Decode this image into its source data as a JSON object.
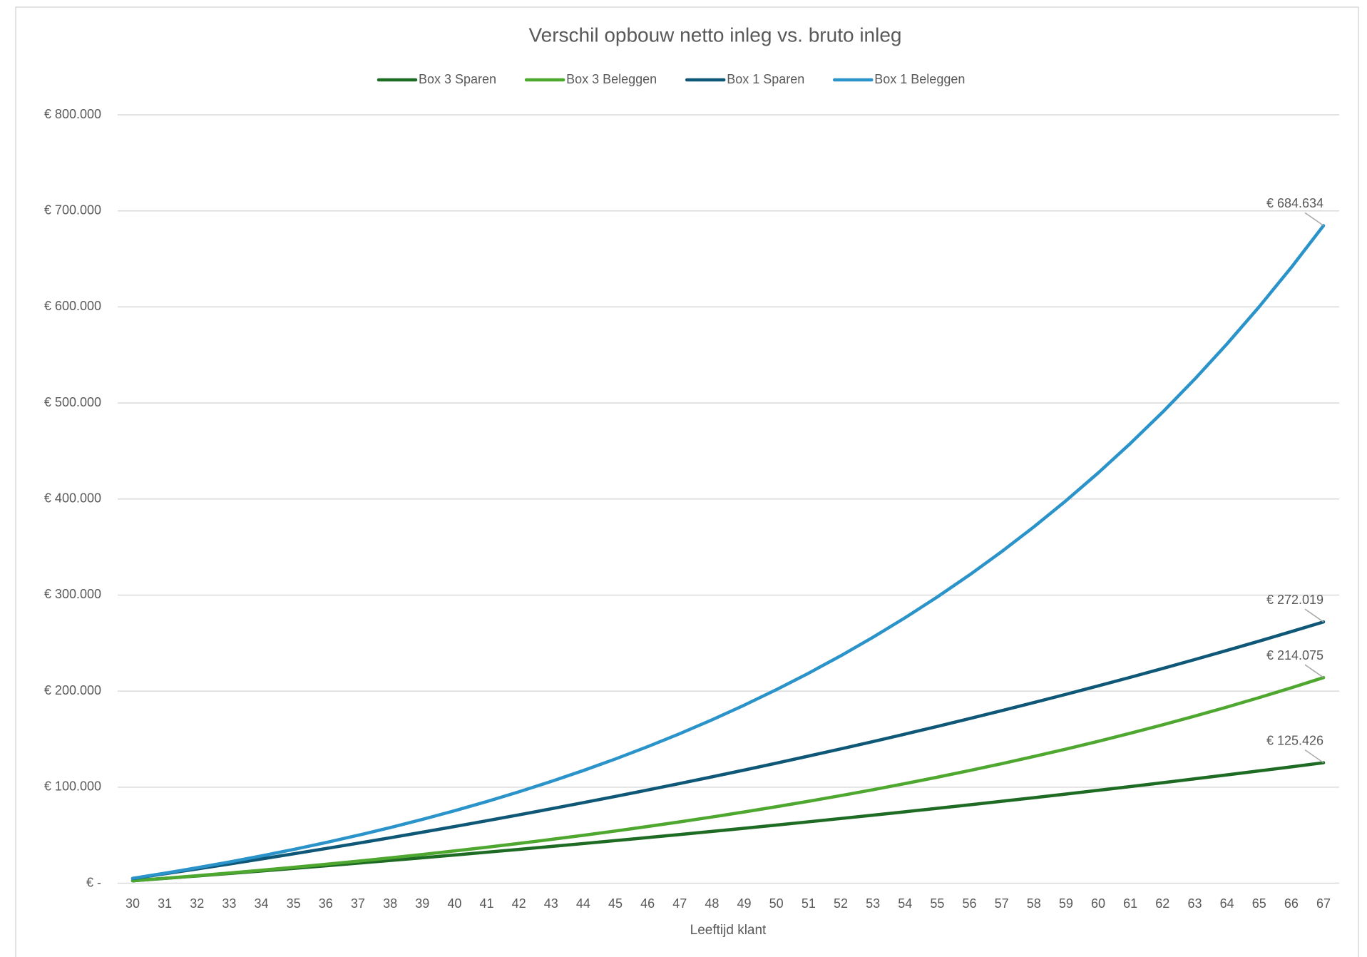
{
  "chart_data": {
    "type": "line",
    "title": "Verschil opbouw netto inleg vs. bruto inleg",
    "x_label": "Leeftijd klant",
    "x": [
      30,
      31,
      32,
      33,
      34,
      35,
      36,
      37,
      38,
      39,
      40,
      41,
      42,
      43,
      44,
      45,
      46,
      47,
      48,
      49,
      50,
      51,
      52,
      53,
      54,
      55,
      56,
      57,
      58,
      59,
      60,
      61,
      62,
      63,
      64,
      65,
      66,
      67
    ],
    "xlim": [
      30,
      67
    ],
    "ylim": [
      0,
      800000
    ],
    "yticks": [
      {
        "value": 0,
        "label": "€ -"
      },
      {
        "value": 100000,
        "label": "€ 100.000"
      },
      {
        "value": 200000,
        "label": "€ 200.000"
      },
      {
        "value": 300000,
        "label": "€ 300.000"
      },
      {
        "value": 400000,
        "label": "€ 400.000"
      },
      {
        "value": 500000,
        "label": "€ 500.000"
      },
      {
        "value": 600000,
        "label": "€ 600.000"
      },
      {
        "value": 700000,
        "label": "€ 700.000"
      },
      {
        "value": 800000,
        "label": "€ 800.000"
      }
    ],
    "grid": true,
    "legend": "top",
    "series": [
      {
        "name": "Box 3 Sparen",
        "color": "#1e6b24",
        "values": [
          2473,
          4983,
          7531,
          10116,
          12741,
          15405,
          18109,
          20853,
          23639,
          26467,
          29337,
          32250,
          35206,
          38207,
          41253,
          44345,
          47483,
          50668,
          53901,
          57183,
          60513,
          63894,
          67325,
          70808,
          74343,
          77931,
          81573,
          85270,
          89022,
          92830,
          96696,
          100619,
          104601,
          108643,
          112746,
          116910,
          121137,
          125426
        ],
        "value_labels": [
          null,
          null,
          null,
          null,
          null,
          null,
          null,
          null,
          null,
          null,
          null,
          null,
          null,
          null,
          null,
          null,
          null,
          null,
          null,
          null,
          null,
          null,
          null,
          null,
          null,
          null,
          null,
          null,
          null,
          null,
          null,
          null,
          null,
          null,
          null,
          null,
          null,
          "€ 125.426"
        ]
      },
      {
        "name": "Box 3 Beleggen",
        "color": "#4ea72e",
        "values": [
          2490,
          5080,
          7775,
          10577,
          13490,
          16516,
          19666,
          22946,
          26352,
          29894,
          33586,
          37414,
          41404,
          45550,
          49858,
          54347,
          59009,
          63858,
          68901,
          74149,
          79609,
          85279,
          91181,
          97319,
          103700,
          110342,
          117246,
          124425,
          131894,
          139658,
          147732,
          156136,
          164870,
          173953,
          183403,
          193226,
          203448,
          214075
        ],
        "value_labels": [
          null,
          null,
          null,
          null,
          null,
          null,
          null,
          null,
          null,
          null,
          null,
          null,
          null,
          null,
          null,
          null,
          null,
          null,
          null,
          null,
          null,
          null,
          null,
          null,
          null,
          null,
          null,
          null,
          null,
          null,
          null,
          null,
          null,
          null,
          null,
          null,
          null,
          "€ 214.075"
        ]
      },
      {
        "name": "Box 1 Sparen",
        "color": "#0e5777",
        "values": [
          4848,
          9792,
          14833,
          19972,
          25226,
          30588,
          36041,
          41616,
          47288,
          53080,
          58994,
          65005,
          71161,
          77438,
          83837,
          90357,
          96999,
          103785,
          110717,
          117770,
          124993,
          132337,
          139826,
          147461,
          155265,
          163215,
          171336,
          179600,
          188033,
          196663,
          205437,
          214381,
          223518,
          232850,
          242351,
          252046,
          261935,
          272019
        ],
        "value_labels": [
          null,
          null,
          null,
          null,
          null,
          null,
          null,
          null,
          null,
          null,
          null,
          null,
          null,
          null,
          null,
          null,
          null,
          null,
          null,
          null,
          null,
          null,
          null,
          null,
          null,
          null,
          null,
          null,
          null,
          null,
          null,
          null,
          null,
          null,
          null,
          null,
          null,
          "€ 272.019"
        ]
      },
      {
        "name": "Box 1 Beleggen",
        "color": "#2a93c9",
        "values": [
          5038,
          10377,
          16040,
          22040,
          28397,
          35137,
          42286,
          49857,
          57887,
          66401,
          75423,
          84984,
          95121,
          105866,
          117261,
          129331,
          142126,
          155688,
          170070,
          185309,
          201470,
          218593,
          236744,
          255988,
          276390,
          298011,
          320922,
          345218,
          370972,
          398266,
          427203,
          457872,
          490379,
          524837,
          561370,
          600094,
          641131,
          684634
        ],
        "value_labels": [
          null,
          null,
          null,
          null,
          null,
          null,
          null,
          null,
          null,
          null,
          null,
          null,
          null,
          null,
          null,
          null,
          null,
          null,
          null,
          null,
          null,
          null,
          null,
          null,
          null,
          null,
          null,
          null,
          null,
          null,
          null,
          null,
          null,
          null,
          null,
          null,
          null,
          "€ 684.634"
        ]
      }
    ]
  }
}
